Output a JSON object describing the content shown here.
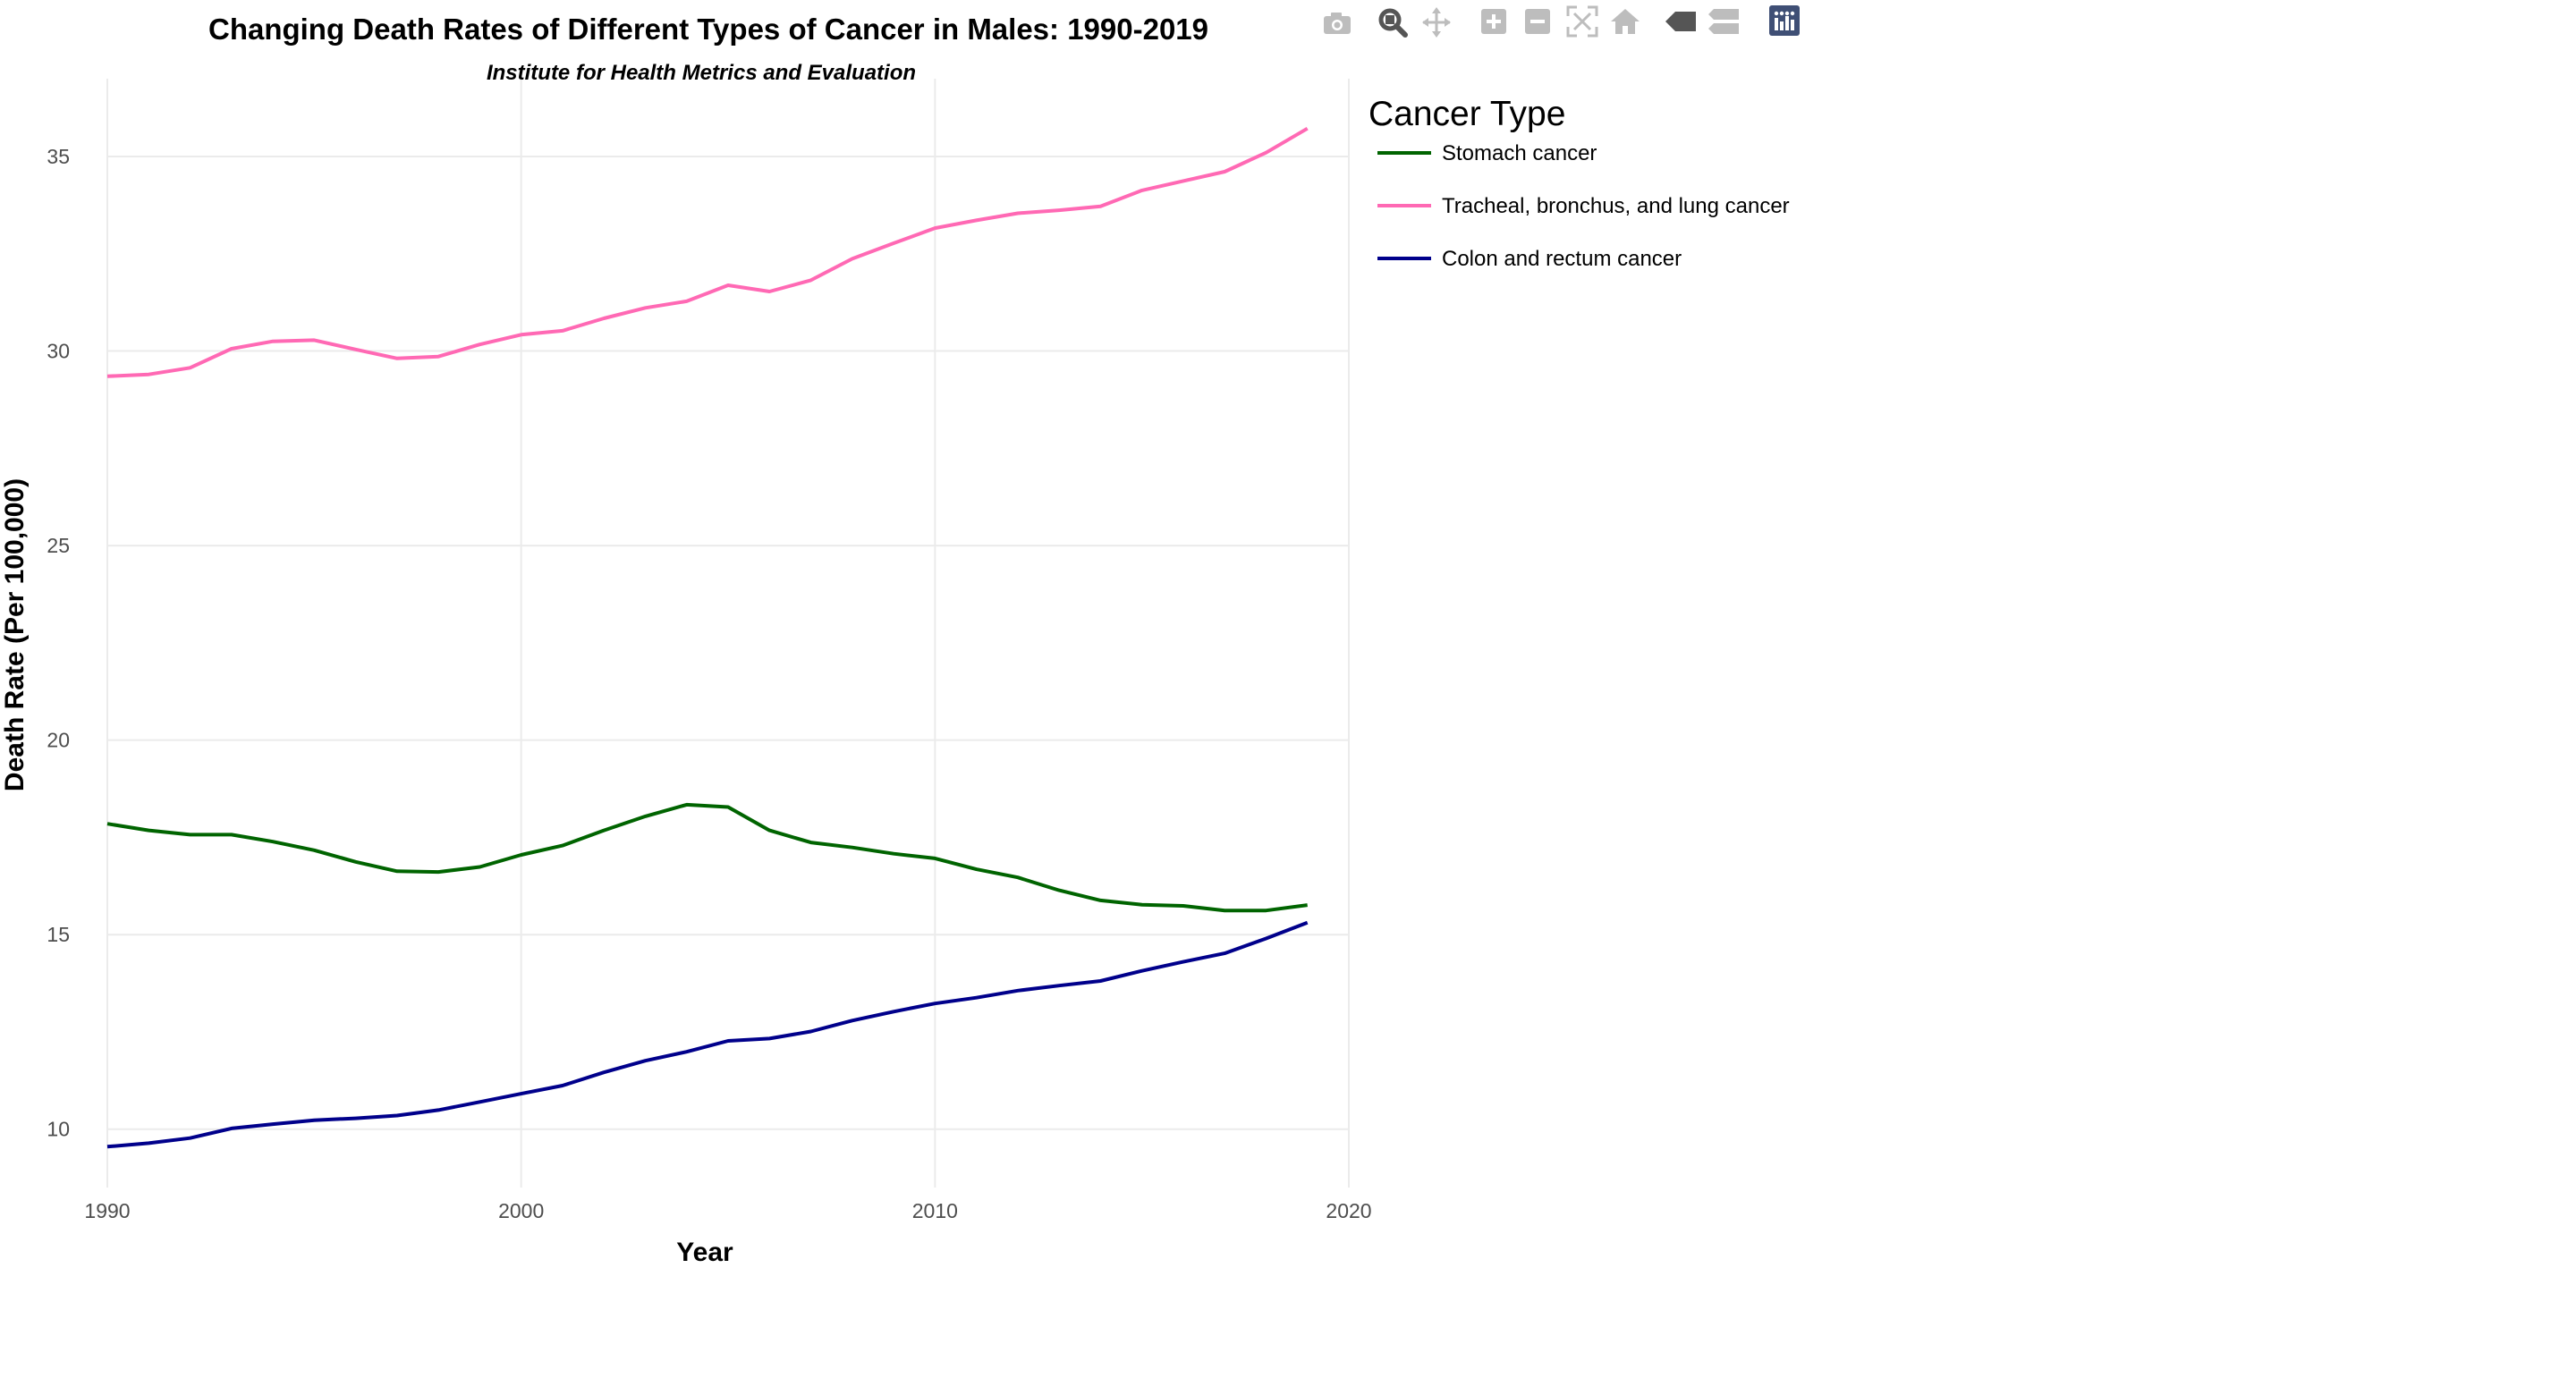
{
  "chart_data": {
    "type": "line",
    "title": "Changing Death Rates of Different Types of Cancer in Males: 1990-2019",
    "subtitle": "Institute for Health Metrics and Evaluation",
    "xlabel": "Year",
    "ylabel": "Death Rate (Per 100,000)",
    "xlim": [
      1990,
      2020
    ],
    "ylim": [
      8.5,
      37
    ],
    "x_ticks": [
      1990,
      2000,
      2010,
      2020
    ],
    "y_ticks": [
      10,
      15,
      20,
      25,
      30,
      35
    ],
    "grid": true,
    "legend_title": "Cancer Type",
    "legend_position": "top-right",
    "x": [
      1990,
      1991,
      1992,
      1993,
      1994,
      1995,
      1996,
      1997,
      1998,
      1999,
      2000,
      2001,
      2002,
      2003,
      2004,
      2005,
      2006,
      2007,
      2008,
      2009,
      2010,
      2011,
      2012,
      2013,
      2014,
      2015,
      2016,
      2017,
      2018,
      2019
    ],
    "series": [
      {
        "name": "Stomach cancer",
        "color": "#006400",
        "values": [
          17.85,
          17.68,
          17.57,
          17.57,
          17.39,
          17.17,
          16.87,
          16.63,
          16.61,
          16.74,
          17.05,
          17.29,
          17.68,
          18.04,
          18.34,
          18.28,
          17.68,
          17.37,
          17.24,
          17.08,
          16.96,
          16.68,
          16.47,
          16.14,
          15.88,
          15.77,
          15.74,
          15.62,
          15.62,
          15.76
        ]
      },
      {
        "name": "Tracheal, bronchus, and lung cancer",
        "color": "#ff69b4",
        "values": [
          29.35,
          29.4,
          29.57,
          30.06,
          30.25,
          30.28,
          30.04,
          29.81,
          29.86,
          30.17,
          30.42,
          30.52,
          30.84,
          31.11,
          31.28,
          31.69,
          31.53,
          31.82,
          32.37,
          32.77,
          33.16,
          33.36,
          33.54,
          33.62,
          33.72,
          34.13,
          34.37,
          34.61,
          35.1,
          35.72
        ]
      },
      {
        "name": "Colon and rectum cancer",
        "color": "#00008b",
        "values": [
          9.55,
          9.64,
          9.77,
          10.02,
          10.13,
          10.23,
          10.28,
          10.35,
          10.49,
          10.7,
          10.91,
          11.12,
          11.46,
          11.76,
          11.99,
          12.27,
          12.33,
          12.51,
          12.79,
          13.02,
          13.23,
          13.38,
          13.56,
          13.69,
          13.81,
          14.07,
          14.3,
          14.52,
          14.9,
          15.31
        ]
      }
    ]
  },
  "toolbar": {
    "icons": [
      "camera-icon",
      "zoom-icon",
      "pan-icon",
      "zoom-in-icon",
      "zoom-out-icon",
      "autoscale-icon",
      "reset-axes-icon",
      "spike-lines-icon",
      "compare-hover-icon",
      "plotly-logo-icon"
    ]
  }
}
